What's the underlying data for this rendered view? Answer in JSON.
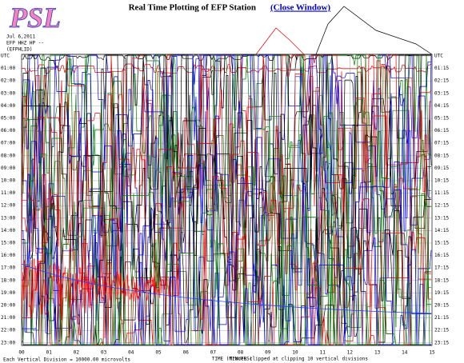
{
  "header": {
    "logo": "PSL",
    "title": "Real Time Plotting of EFP Station",
    "link": "(Close Window)"
  },
  "plot": {
    "date": "Jul 6,2011",
    "station": "EFP HHZ HP --",
    "code": "(EFPHLID)",
    "left_labels": [
      "UTC",
      "01:00",
      "02:00",
      "03:00",
      "04:00",
      "05:00",
      "06:00",
      "07:00",
      "08:00",
      "09:00",
      "10:00",
      "11:00",
      "12:00",
      "13:00",
      "14:00",
      "15:00",
      "16:00",
      "17:00",
      "18:00",
      "19:00",
      "20:00",
      "21:00",
      "22:00",
      "23:00"
    ],
    "right_labels": [
      "UTC",
      "01:15",
      "02:15",
      "03:15",
      "04:15",
      "05:15",
      "06:15",
      "07:15",
      "08:15",
      "09:15",
      "10:15",
      "11:15",
      "12:15",
      "13:15",
      "14:15",
      "15:15",
      "16:15",
      "17:15",
      "18:15",
      "19:15",
      "20:15",
      "21:15",
      "22:15",
      "23:15"
    ],
    "x_labels": [
      "00",
      "01",
      "02",
      "03",
      "04",
      "05",
      "06",
      "07",
      "08",
      "09",
      "10",
      "11",
      "12",
      "13",
      "14",
      "15"
    ],
    "x_title": "TIME (MINUTES)",
    "footer_left": "Each Vertical Division = 10000.00 microvolts",
    "footer_right": "Traces clipped at clipping 10 vertical divisions"
  }
}
